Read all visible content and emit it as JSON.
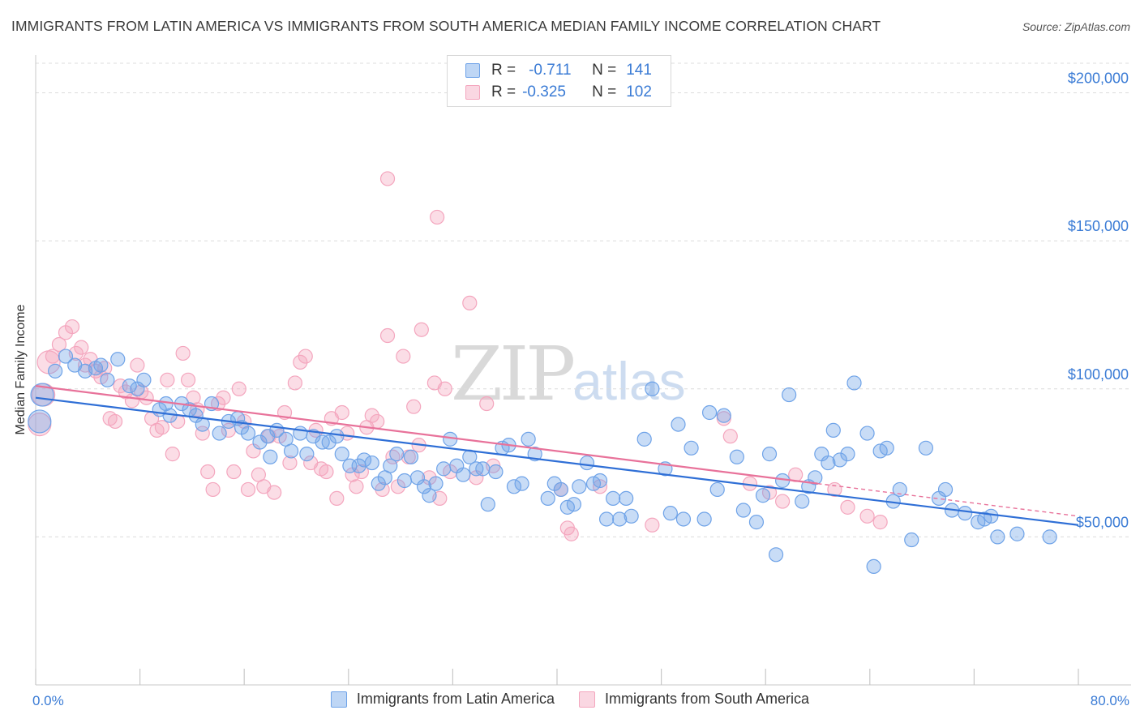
{
  "header": {
    "title": "IMMIGRANTS FROM LATIN AMERICA VS IMMIGRANTS FROM SOUTH AMERICA MEDIAN FAMILY INCOME CORRELATION CHART",
    "source": "Source: ZipAtlas.com"
  },
  "watermark": {
    "zip": "ZIP",
    "atlas": "atlas"
  },
  "legend": {
    "r_label": "R =",
    "n_label": "N =",
    "series": [
      {
        "r": "-0.711",
        "n": "141",
        "color": "#6fa3e8"
      },
      {
        "r": "-0.325",
        "n": "102",
        "color": "#f4a6be"
      }
    ]
  },
  "bottom_legend": [
    {
      "label": "Immigrants from Latin America",
      "color": "#6fa3e8"
    },
    {
      "label": "Immigrants from South America",
      "color": "#f4a6be"
    }
  ],
  "chart_data": {
    "type": "scatter",
    "title": "IMMIGRANTS FROM LATIN AMERICA VS IMMIGRANTS FROM SOUTH AMERICA MEDIAN FAMILY INCOME CORRELATION CHART",
    "xlabel": "",
    "ylabel": "Median Family Income",
    "xlim": [
      0,
      80
    ],
    "ylim": [
      0,
      210000
    ],
    "x_tick_labels": [
      "0.0%",
      "80.0%"
    ],
    "y_ticks": [
      50000,
      100000,
      150000,
      200000
    ],
    "y_tick_labels": [
      "$50,000",
      "$100,000",
      "$150,000",
      "$200,000"
    ],
    "grid": true,
    "legend_position": "top-center",
    "series": [
      {
        "name": "Immigrants from Latin America",
        "color": "#6fa3e8",
        "trend": {
          "x": [
            0,
            80
          ],
          "y": [
            97000,
            54000
          ],
          "style": "solid"
        },
        "points": [
          [
            0.3,
            89000
          ],
          [
            0.5,
            98000
          ],
          [
            1.5,
            106000
          ],
          [
            2.3,
            111000
          ],
          [
            3.0,
            108000
          ],
          [
            3.8,
            106000
          ],
          [
            4.6,
            107000
          ],
          [
            5.0,
            108000
          ],
          [
            6.3,
            110000
          ],
          [
            5.5,
            103000
          ],
          [
            7.2,
            101000
          ],
          [
            7.8,
            100000
          ],
          [
            8.3,
            103000
          ],
          [
            9.5,
            93000
          ],
          [
            10.0,
            95000
          ],
          [
            10.3,
            91000
          ],
          [
            11.2,
            95000
          ],
          [
            11.8,
            93000
          ],
          [
            12.3,
            91000
          ],
          [
            12.8,
            88000
          ],
          [
            13.5,
            95000
          ],
          [
            14.1,
            85000
          ],
          [
            14.8,
            89000
          ],
          [
            15.5,
            90000
          ],
          [
            15.8,
            87000
          ],
          [
            16.3,
            85000
          ],
          [
            17.2,
            82000
          ],
          [
            17.8,
            84000
          ],
          [
            18.0,
            77000
          ],
          [
            18.5,
            86000
          ],
          [
            19.2,
            83000
          ],
          [
            19.6,
            79000
          ],
          [
            20.3,
            85000
          ],
          [
            20.8,
            78000
          ],
          [
            21.3,
            84000
          ],
          [
            22.0,
            82000
          ],
          [
            22.5,
            82000
          ],
          [
            23.1,
            84000
          ],
          [
            23.5,
            78000
          ],
          [
            24.1,
            74000
          ],
          [
            24.8,
            74000
          ],
          [
            25.2,
            76000
          ],
          [
            25.8,
            75000
          ],
          [
            26.3,
            68000
          ],
          [
            26.8,
            70000
          ],
          [
            27.2,
            74000
          ],
          [
            27.7,
            78000
          ],
          [
            28.3,
            69000
          ],
          [
            28.8,
            77000
          ],
          [
            29.3,
            70000
          ],
          [
            29.8,
            67000
          ],
          [
            30.2,
            64000
          ],
          [
            30.7,
            68000
          ],
          [
            31.3,
            73000
          ],
          [
            31.8,
            83000
          ],
          [
            32.3,
            74000
          ],
          [
            32.8,
            71000
          ],
          [
            33.3,
            77000
          ],
          [
            33.8,
            73000
          ],
          [
            34.3,
            73000
          ],
          [
            34.7,
            61000
          ],
          [
            35.3,
            72000
          ],
          [
            35.8,
            80000
          ],
          [
            36.3,
            81000
          ],
          [
            36.7,
            67000
          ],
          [
            37.3,
            68000
          ],
          [
            37.8,
            83000
          ],
          [
            38.3,
            78000
          ],
          [
            39.3,
            63000
          ],
          [
            39.8,
            68000
          ],
          [
            40.3,
            66000
          ],
          [
            40.8,
            60000
          ],
          [
            41.3,
            61000
          ],
          [
            41.7,
            67000
          ],
          [
            42.3,
            75000
          ],
          [
            42.8,
            68000
          ],
          [
            43.3,
            69000
          ],
          [
            43.8,
            56000
          ],
          [
            44.3,
            63000
          ],
          [
            44.8,
            56000
          ],
          [
            45.3,
            63000
          ],
          [
            45.7,
            57000
          ],
          [
            46.7,
            83000
          ],
          [
            47.3,
            100000
          ],
          [
            48.3,
            73000
          ],
          [
            48.7,
            58000
          ],
          [
            49.3,
            88000
          ],
          [
            49.7,
            56000
          ],
          [
            50.3,
            80000
          ],
          [
            51.3,
            56000
          ],
          [
            51.7,
            92000
          ],
          [
            52.3,
            66000
          ],
          [
            52.8,
            91000
          ],
          [
            53.8,
            77000
          ],
          [
            54.3,
            59000
          ],
          [
            55.3,
            55000
          ],
          [
            55.8,
            64000
          ],
          [
            56.3,
            78000
          ],
          [
            56.8,
            44000
          ],
          [
            57.3,
            69000
          ],
          [
            57.8,
            98000
          ],
          [
            58.8,
            62000
          ],
          [
            59.3,
            67000
          ],
          [
            59.8,
            70000
          ],
          [
            60.3,
            78000
          ],
          [
            60.8,
            75000
          ],
          [
            61.2,
            86000
          ],
          [
            61.7,
            76000
          ],
          [
            62.3,
            78000
          ],
          [
            62.8,
            102000
          ],
          [
            63.8,
            85000
          ],
          [
            64.3,
            40000
          ],
          [
            64.8,
            79000
          ],
          [
            65.3,
            80000
          ],
          [
            65.8,
            62000
          ],
          [
            66.3,
            66000
          ],
          [
            67.2,
            49000
          ],
          [
            68.3,
            80000
          ],
          [
            69.3,
            63000
          ],
          [
            69.8,
            66000
          ],
          [
            70.3,
            59000
          ],
          [
            71.3,
            58000
          ],
          [
            72.3,
            55000
          ],
          [
            72.8,
            56000
          ],
          [
            73.3,
            57000
          ],
          [
            73.8,
            50000
          ],
          [
            75.3,
            51000
          ],
          [
            77.8,
            50000
          ]
        ]
      },
      {
        "name": "Immigrants from South America",
        "color": "#f4a6be",
        "trend": {
          "x": [
            0,
            60
          ],
          "y": [
            101000,
            68000
          ],
          "style": "solid",
          "extension": {
            "x": [
              60,
              80
            ],
            "y": [
              68000,
              57000
            ],
            "style": "dashed"
          }
        },
        "points": [
          [
            0.3,
            88000
          ],
          [
            0.6,
            98000
          ],
          [
            1.0,
            109000
          ],
          [
            1.3,
            111000
          ],
          [
            1.8,
            115000
          ],
          [
            2.3,
            119000
          ],
          [
            2.8,
            121000
          ],
          [
            3.1,
            112000
          ],
          [
            3.5,
            114000
          ],
          [
            3.8,
            108000
          ],
          [
            4.2,
            110000
          ],
          [
            4.6,
            106000
          ],
          [
            5.0,
            104000
          ],
          [
            5.3,
            107000
          ],
          [
            5.7,
            90000
          ],
          [
            6.1,
            89000
          ],
          [
            6.5,
            101000
          ],
          [
            6.9,
            99000
          ],
          [
            7.4,
            96000
          ],
          [
            7.8,
            108000
          ],
          [
            8.1,
            99000
          ],
          [
            8.5,
            97000
          ],
          [
            8.9,
            90000
          ],
          [
            9.3,
            86000
          ],
          [
            9.7,
            87000
          ],
          [
            10.1,
            103000
          ],
          [
            10.5,
            78000
          ],
          [
            10.9,
            89000
          ],
          [
            11.3,
            112000
          ],
          [
            11.7,
            103000
          ],
          [
            12.1,
            97000
          ],
          [
            12.4,
            93000
          ],
          [
            12.8,
            85000
          ],
          [
            13.2,
            72000
          ],
          [
            13.6,
            66000
          ],
          [
            14.0,
            95000
          ],
          [
            14.4,
            97000
          ],
          [
            14.8,
            86000
          ],
          [
            15.2,
            72000
          ],
          [
            15.6,
            100000
          ],
          [
            16.0,
            89000
          ],
          [
            16.3,
            66000
          ],
          [
            16.7,
            79000
          ],
          [
            17.1,
            71000
          ],
          [
            17.5,
            67000
          ],
          [
            17.9,
            84000
          ],
          [
            18.3,
            65000
          ],
          [
            18.7,
            84000
          ],
          [
            19.1,
            92000
          ],
          [
            19.5,
            75000
          ],
          [
            19.9,
            102000
          ],
          [
            20.3,
            109000
          ],
          [
            20.7,
            111000
          ],
          [
            21.1,
            75000
          ],
          [
            21.5,
            86000
          ],
          [
            21.9,
            73000
          ],
          [
            22.3,
            72000
          ],
          [
            22.7,
            90000
          ],
          [
            23.1,
            63000
          ],
          [
            23.5,
            92000
          ],
          [
            23.9,
            85000
          ],
          [
            24.3,
            71000
          ],
          [
            24.6,
            67000
          ],
          [
            25.0,
            72000
          ],
          [
            25.4,
            87000
          ],
          [
            25.8,
            91000
          ],
          [
            26.2,
            89000
          ],
          [
            26.6,
            66000
          ],
          [
            27.0,
            118000
          ],
          [
            27.4,
            77000
          ],
          [
            27.8,
            67000
          ],
          [
            28.2,
            111000
          ],
          [
            28.6,
            77000
          ],
          [
            29.0,
            94000
          ],
          [
            29.4,
            81000
          ],
          [
            29.6,
            120000
          ],
          [
            30.2,
            70000
          ],
          [
            30.6,
            102000
          ],
          [
            31.0,
            63000
          ],
          [
            31.4,
            100000
          ],
          [
            31.8,
            72000
          ],
          [
            27.0,
            171000
          ],
          [
            30.8,
            158000
          ],
          [
            33.3,
            129000
          ],
          [
            33.8,
            70000
          ],
          [
            34.6,
            95000
          ],
          [
            35.1,
            74000
          ],
          [
            40.3,
            66000
          ],
          [
            40.8,
            53000
          ],
          [
            41.1,
            51000
          ],
          [
            43.3,
            67000
          ],
          [
            47.3,
            54000
          ],
          [
            52.8,
            90000
          ],
          [
            53.3,
            84000
          ],
          [
            54.8,
            68000
          ],
          [
            56.3,
            65000
          ],
          [
            57.3,
            62000
          ],
          [
            58.3,
            71000
          ],
          [
            61.3,
            66000
          ],
          [
            62.3,
            60000
          ],
          [
            63.8,
            57000
          ],
          [
            64.8,
            55000
          ]
        ]
      }
    ]
  }
}
